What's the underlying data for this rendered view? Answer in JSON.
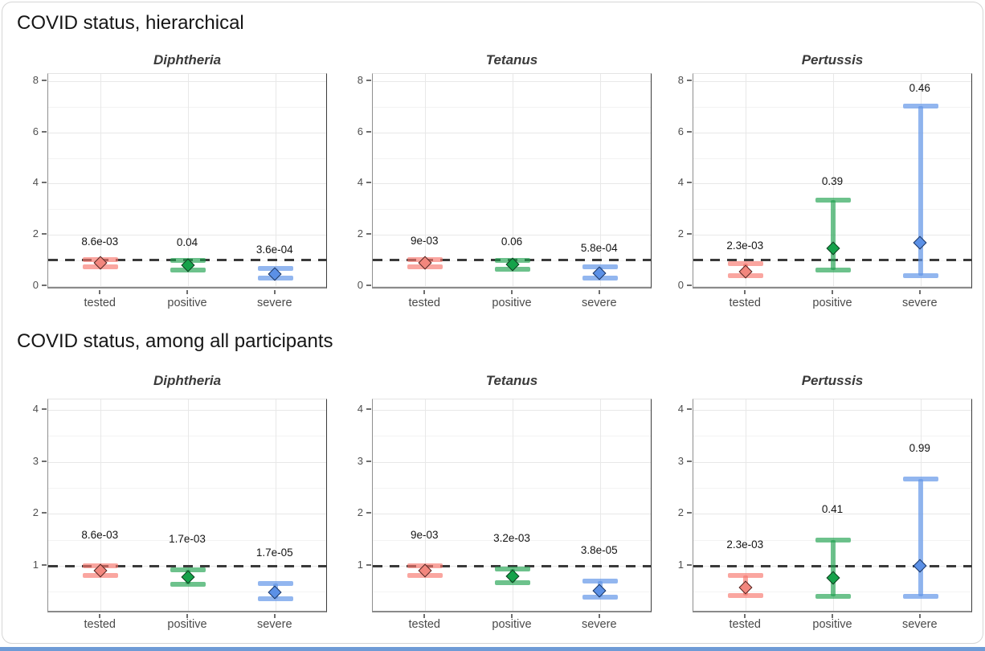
{
  "page": {
    "bottom_strip_color": "#6e9bd6"
  },
  "colors": {
    "tested": {
      "bar": "rgba(248,118,109,0.65)",
      "point_fill": "#f2867d",
      "point_stroke": "#4d2420"
    },
    "positive": {
      "bar": "rgba(31,162,79,0.65)",
      "point_fill": "#15a24a",
      "point_stroke": "#123c21"
    },
    "severe": {
      "bar": "rgba(100,151,232,0.70)",
      "point_fill": "#5b90e6",
      "point_stroke": "#1c3560"
    }
  },
  "reference_line_color": "#3a3a3a",
  "chart_data": [
    {
      "type": "scatter",
      "error_bars": true,
      "title": "COVID status, hierarchical",
      "ref_line_y": 1,
      "categories": [
        "tested",
        "positive",
        "severe"
      ],
      "y_axis": {
        "ticks": [
          0,
          2,
          4,
          6,
          8
        ],
        "tick_labels": [
          "0",
          "2",
          "4",
          "6",
          "8"
        ],
        "minor_ticks": [
          1,
          3,
          5,
          7
        ],
        "range": [
          -0.13,
          8.28
        ]
      },
      "panels": [
        {
          "title": "Diphtheria",
          "points": [
            {
              "category": "tested",
              "estimate": 0.88,
              "ci_low": 0.75,
              "ci_high": 1.03,
              "p_label": "8.6e-03"
            },
            {
              "category": "positive",
              "estimate": 0.79,
              "ci_low": 0.63,
              "ci_high": 0.99,
              "p_label": "0.04"
            },
            {
              "category": "severe",
              "estimate": 0.45,
              "ci_low": 0.3,
              "ci_high": 0.7,
              "p_label": "3.6e-04"
            }
          ]
        },
        {
          "title": "Tetanus",
          "points": [
            {
              "category": "tested",
              "estimate": 0.89,
              "ci_low": 0.75,
              "ci_high": 1.04,
              "p_label": "9e-03"
            },
            {
              "category": "positive",
              "estimate": 0.82,
              "ci_low": 0.65,
              "ci_high": 1.01,
              "p_label": "0.06"
            },
            {
              "category": "severe",
              "estimate": 0.49,
              "ci_low": 0.32,
              "ci_high": 0.76,
              "p_label": "5.8e-04"
            }
          ]
        },
        {
          "title": "Pertussis",
          "points": [
            {
              "category": "tested",
              "estimate": 0.54,
              "ci_low": 0.39,
              "ci_high": 0.86,
              "p_label": "2.3e-03"
            },
            {
              "category": "positive",
              "estimate": 1.44,
              "ci_low": 0.61,
              "ci_high": 3.36,
              "p_label": "0.39"
            },
            {
              "category": "severe",
              "estimate": 1.69,
              "ci_low": 0.4,
              "ci_high": 7.02,
              "p_label": "0.46"
            }
          ]
        }
      ]
    },
    {
      "type": "scatter",
      "error_bars": true,
      "title": "COVID status, among all participants",
      "ref_line_y": 1,
      "categories": [
        "tested",
        "positive",
        "severe"
      ],
      "y_axis": {
        "ticks": [
          1,
          2,
          3,
          4
        ],
        "tick_labels": [
          "1",
          "2",
          "3",
          "4"
        ],
        "minor_ticks": [
          0.5,
          1.5,
          2.5,
          3.5
        ],
        "range": [
          0.09,
          4.2
        ]
      },
      "panels": [
        {
          "title": "Diphtheria",
          "points": [
            {
              "category": "tested",
              "estimate": 0.9,
              "ci_low": 0.82,
              "ci_high": 1.0,
              "p_label": "8.6e-03"
            },
            {
              "category": "positive",
              "estimate": 0.77,
              "ci_low": 0.65,
              "ci_high": 0.92,
              "p_label": "1.7e-03"
            },
            {
              "category": "severe",
              "estimate": 0.49,
              "ci_low": 0.37,
              "ci_high": 0.66,
              "p_label": "1.7e-05"
            }
          ]
        },
        {
          "title": "Tetanus",
          "points": [
            {
              "category": "tested",
              "estimate": 0.9,
              "ci_low": 0.82,
              "ci_high": 1.0,
              "p_label": "9e-03"
            },
            {
              "category": "positive",
              "estimate": 0.79,
              "ci_low": 0.67,
              "ci_high": 0.94,
              "p_label": "3.2e-03"
            },
            {
              "category": "severe",
              "estimate": 0.52,
              "ci_low": 0.4,
              "ci_high": 0.71,
              "p_label": "3.8e-05"
            }
          ]
        },
        {
          "title": "Pertussis",
          "points": [
            {
              "category": "tested",
              "estimate": 0.57,
              "ci_low": 0.43,
              "ci_high": 0.82,
              "p_label": "2.3e-03"
            },
            {
              "category": "positive",
              "estimate": 0.76,
              "ci_low": 0.42,
              "ci_high": 1.5,
              "p_label": "0.41"
            },
            {
              "category": "severe",
              "estimate": 0.99,
              "ci_low": 0.42,
              "ci_high": 2.67,
              "p_label": "0.99"
            }
          ]
        }
      ]
    }
  ]
}
